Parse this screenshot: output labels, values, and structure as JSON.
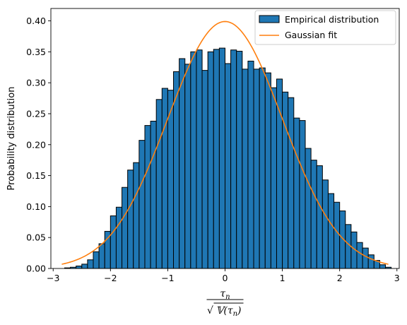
{
  "chart_data": {
    "type": "bar",
    "subtype": "histogram",
    "xlim": [
      -3.04,
      3.04
    ],
    "ylim": [
      0,
      0.42
    ],
    "xticks": [
      -3,
      -2,
      -1,
      0,
      1,
      2,
      3
    ],
    "xtick_labels": [
      "−3",
      "−2",
      "−1",
      "0",
      "1",
      "2",
      "3"
    ],
    "yticks": [
      0,
      0.05,
      0.1,
      0.15,
      0.2,
      0.25,
      0.3,
      0.35,
      0.4
    ],
    "ytick_labels": [
      "0.00",
      "0.05",
      "0.10",
      "0.15",
      "0.20",
      "0.25",
      "0.30",
      "0.35",
      "0.40"
    ],
    "ylabel": "Probability distribution",
    "xlabel": {
      "numerator": "τ",
      "numerator_sub": "n",
      "denominator": "𝕍(τ",
      "denominator_sub": "n",
      "denominator_close": ")"
    },
    "bar_color": "#1f77b4",
    "bar_edge_color": "#000000",
    "curve_color": "#ff7f0e",
    "legend_position": "top-right",
    "series": [
      {
        "name": "Empirical distribution",
        "kind": "histogram",
        "bins": [
          {
            "x0": -2.8,
            "x1": -2.7,
            "value": 0.001
          },
          {
            "x0": -2.7,
            "x1": -2.6,
            "value": 0.002
          },
          {
            "x0": -2.6,
            "x1": -2.5,
            "value": 0.004
          },
          {
            "x0": -2.5,
            "x1": -2.4,
            "value": 0.007
          },
          {
            "x0": -2.4,
            "x1": -2.3,
            "value": 0.014
          },
          {
            "x0": -2.3,
            "x1": -2.2,
            "value": 0.027
          },
          {
            "x0": -2.2,
            "x1": -2.1,
            "value": 0.04
          },
          {
            "x0": -2.1,
            "x1": -2.0,
            "value": 0.06
          },
          {
            "x0": -2.0,
            "x1": -1.9,
            "value": 0.085
          },
          {
            "x0": -1.9,
            "x1": -1.8,
            "value": 0.099
          },
          {
            "x0": -1.8,
            "x1": -1.7,
            "value": 0.131
          },
          {
            "x0": -1.7,
            "x1": -1.6,
            "value": 0.159
          },
          {
            "x0": -1.6,
            "x1": -1.5,
            "value": 0.171
          },
          {
            "x0": -1.5,
            "x1": -1.4,
            "value": 0.207
          },
          {
            "x0": -1.4,
            "x1": -1.3,
            "value": 0.231
          },
          {
            "x0": -1.3,
            "x1": -1.2,
            "value": 0.238
          },
          {
            "x0": -1.2,
            "x1": -1.1,
            "value": 0.273
          },
          {
            "x0": -1.1,
            "x1": -1.0,
            "value": 0.291
          },
          {
            "x0": -1.0,
            "x1": -0.9,
            "value": 0.288
          },
          {
            "x0": -0.9,
            "x1": -0.8,
            "value": 0.318
          },
          {
            "x0": -0.8,
            "x1": -0.7,
            "value": 0.339
          },
          {
            "x0": -0.7,
            "x1": -0.6,
            "value": 0.33
          },
          {
            "x0": -0.6,
            "x1": -0.5,
            "value": 0.35
          },
          {
            "x0": -0.5,
            "x1": -0.4,
            "value": 0.353
          },
          {
            "x0": -0.4,
            "x1": -0.3,
            "value": 0.32
          },
          {
            "x0": -0.3,
            "x1": -0.2,
            "value": 0.35
          },
          {
            "x0": -0.2,
            "x1": -0.1,
            "value": 0.354
          },
          {
            "x0": -0.1,
            "x1": 0.0,
            "value": 0.356
          },
          {
            "x0": 0.0,
            "x1": 0.1,
            "value": 0.331
          },
          {
            "x0": 0.1,
            "x1": 0.2,
            "value": 0.353
          },
          {
            "x0": 0.2,
            "x1": 0.3,
            "value": 0.351
          },
          {
            "x0": 0.3,
            "x1": 0.4,
            "value": 0.322
          },
          {
            "x0": 0.4,
            "x1": 0.5,
            "value": 0.335
          },
          {
            "x0": 0.5,
            "x1": 0.6,
            "value": 0.322
          },
          {
            "x0": 0.6,
            "x1": 0.7,
            "value": 0.324
          },
          {
            "x0": 0.7,
            "x1": 0.8,
            "value": 0.316
          },
          {
            "x0": 0.8,
            "x1": 0.9,
            "value": 0.292
          },
          {
            "x0": 0.9,
            "x1": 1.0,
            "value": 0.306
          },
          {
            "x0": 1.0,
            "x1": 1.1,
            "value": 0.285
          },
          {
            "x0": 1.1,
            "x1": 1.2,
            "value": 0.276
          },
          {
            "x0": 1.2,
            "x1": 1.3,
            "value": 0.243
          },
          {
            "x0": 1.3,
            "x1": 1.4,
            "value": 0.239
          },
          {
            "x0": 1.4,
            "x1": 1.5,
            "value": 0.194
          },
          {
            "x0": 1.5,
            "x1": 1.6,
            "value": 0.175
          },
          {
            "x0": 1.6,
            "x1": 1.7,
            "value": 0.166
          },
          {
            "x0": 1.7,
            "x1": 1.8,
            "value": 0.143
          },
          {
            "x0": 1.8,
            "x1": 1.9,
            "value": 0.121
          },
          {
            "x0": 1.9,
            "x1": 2.0,
            "value": 0.107
          },
          {
            "x0": 2.0,
            "x1": 2.1,
            "value": 0.093
          },
          {
            "x0": 2.1,
            "x1": 2.2,
            "value": 0.071
          },
          {
            "x0": 2.2,
            "x1": 2.3,
            "value": 0.059
          },
          {
            "x0": 2.3,
            "x1": 2.4,
            "value": 0.042
          },
          {
            "x0": 2.4,
            "x1": 2.5,
            "value": 0.033
          },
          {
            "x0": 2.5,
            "x1": 2.6,
            "value": 0.022
          },
          {
            "x0": 2.6,
            "x1": 2.7,
            "value": 0.013
          },
          {
            "x0": 2.7,
            "x1": 2.8,
            "value": 0.006
          },
          {
            "x0": 2.8,
            "x1": 2.9,
            "value": 0.002
          }
        ]
      },
      {
        "name": "Gaussian fit",
        "kind": "line",
        "x_range": [
          -2.85,
          2.85
        ],
        "mean": 0,
        "std": 1
      }
    ]
  }
}
